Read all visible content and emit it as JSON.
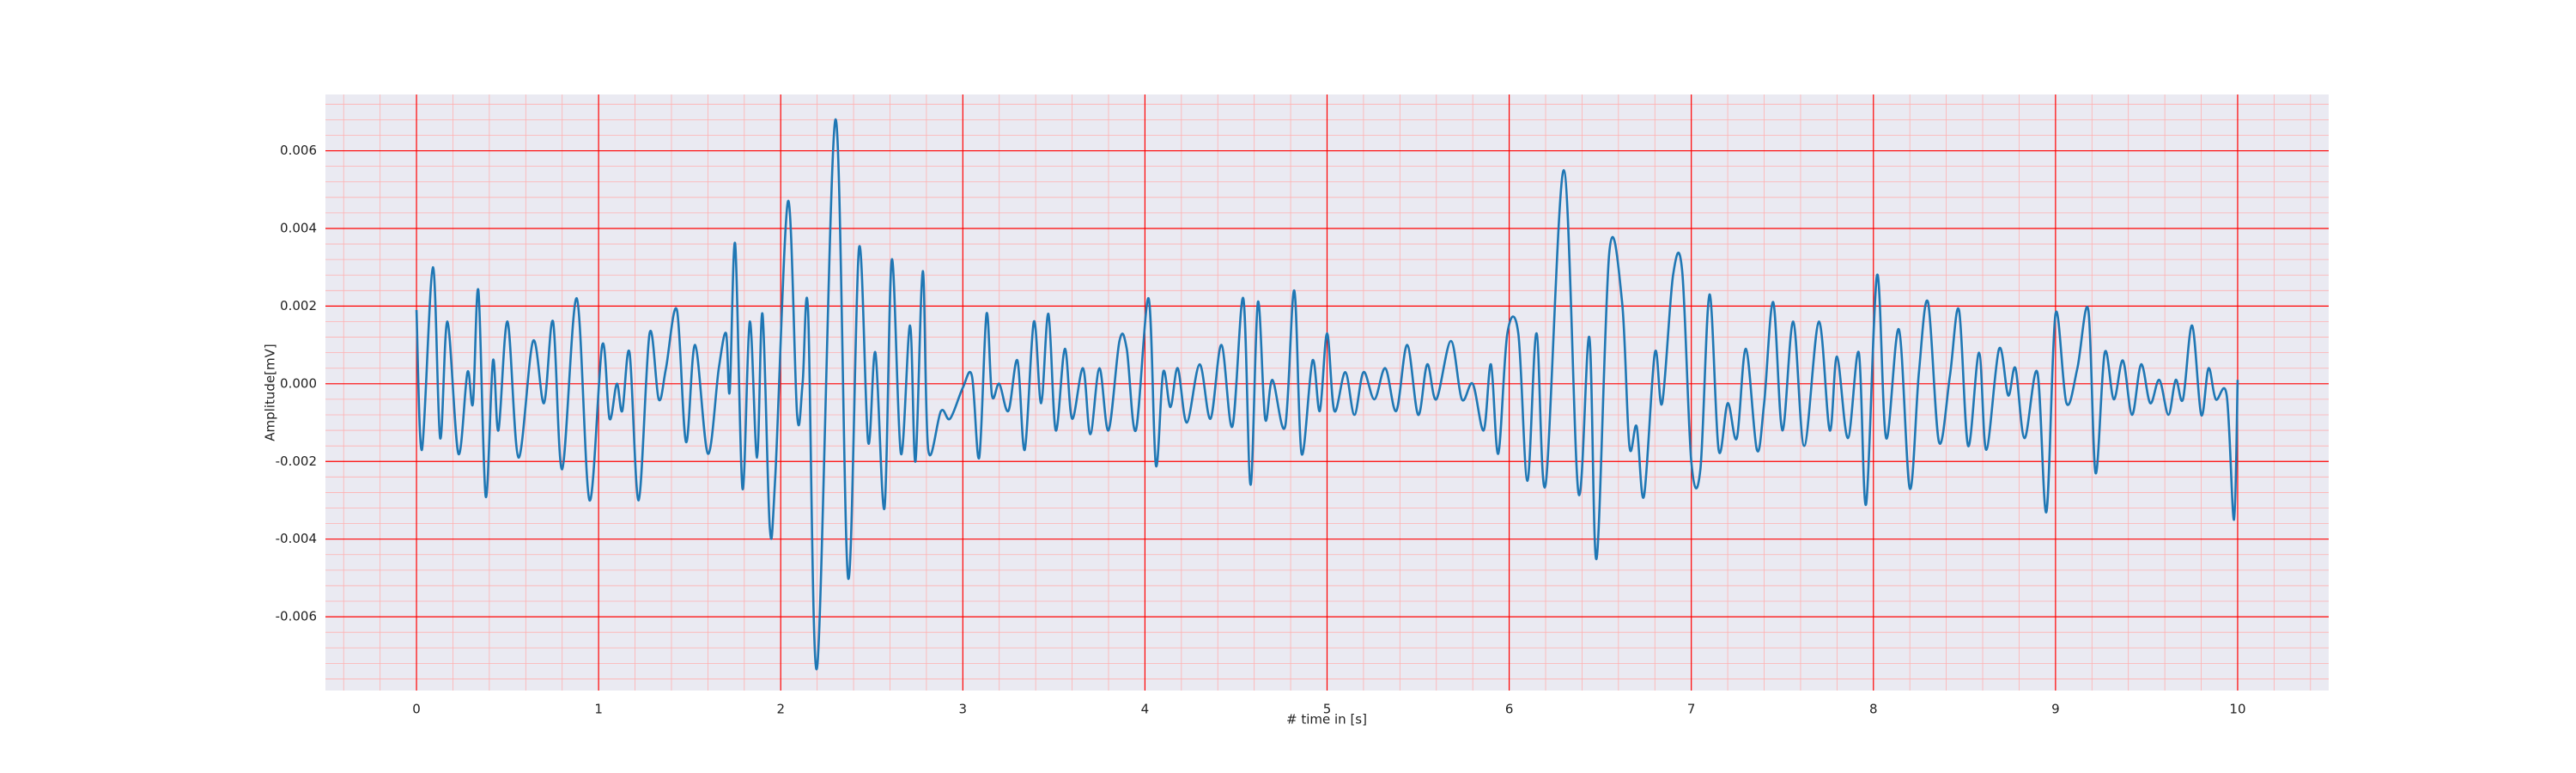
{
  "chart_data": {
    "type": "line",
    "xlabel": "# time in [s]",
    "ylabel": "Amplitude[mV]",
    "xlim": [
      -0.5,
      10.5
    ],
    "ylim": [
      -0.0079,
      0.00745
    ],
    "xticks": [
      0,
      1,
      2,
      3,
      4,
      5,
      6,
      7,
      8,
      9,
      10
    ],
    "yticks": [
      -0.006,
      -0.004,
      -0.002,
      {
        "value": 0,
        "label": "0.000"
      },
      0.002,
      0.004,
      0.006
    ],
    "xminorticks": [
      -0.4,
      -0.2,
      0.2,
      0.4,
      0.6,
      0.8,
      1.2,
      1.4,
      1.6,
      1.8,
      2.2,
      2.4,
      2.6,
      2.8,
      3.2,
      3.4,
      3.6,
      3.8,
      4.2,
      4.4,
      4.6,
      4.8,
      5.2,
      5.4,
      5.6,
      5.8,
      6.2,
      6.4,
      6.6,
      6.8,
      7.2,
      7.4,
      7.6,
      7.8,
      8.2,
      8.4,
      8.6,
      8.8,
      9.2,
      9.4,
      9.6,
      9.8,
      10.2,
      10.4
    ],
    "yminorticks": [
      -0.0076,
      -0.0072,
      -0.0068,
      -0.0064,
      -0.0056,
      -0.0052,
      -0.0048,
      -0.0044,
      -0.0036,
      -0.0032,
      -0.0028,
      -0.0024,
      -0.0016,
      -0.0012,
      -0.0008,
      -0.0004,
      0.0004,
      0.0008,
      0.0012,
      0.0016,
      0.0024,
      0.0028,
      0.0032,
      0.0036,
      0.0044,
      0.0048,
      0.0052,
      0.0056,
      0.0064,
      0.0068,
      0.0072
    ],
    "grid": true,
    "minor_grid": true,
    "grid_color": "#ff0000",
    "minor_grid_color": "#ffb0b0",
    "background": "#eaeaf2",
    "series": [
      {
        "color": "#1f77b4",
        "x": [
          0,
          0.03,
          0.09,
          0.13,
          0.17,
          0.23,
          0.28,
          0.31,
          0.34,
          0.38,
          0.42,
          0.45,
          0.5,
          0.56,
          0.64,
          0.7,
          0.75,
          0.8,
          0.88,
          0.95,
          1.02,
          1.06,
          1.1,
          1.13,
          1.17,
          1.22,
          1.28,
          1.33,
          1.37,
          1.43,
          1.48,
          1.53,
          1.6,
          1.66,
          1.7,
          1.72,
          1.75,
          1.79,
          1.83,
          1.87,
          1.9,
          1.94,
          1.97,
          2.04,
          2.09,
          2.12,
          2.15,
          2.2,
          2.3,
          2.37,
          2.43,
          2.48,
          2.52,
          2.57,
          2.61,
          2.66,
          2.71,
          2.74,
          2.78,
          2.81,
          2.88,
          2.93,
          3.0,
          3.05,
          3.09,
          3.13,
          3.16,
          3.2,
          3.25,
          3.3,
          3.34,
          3.39,
          3.43,
          3.47,
          3.51,
          3.56,
          3.6,
          3.66,
          3.7,
          3.75,
          3.8,
          3.86,
          3.9,
          3.95,
          4.02,
          4.06,
          4.1,
          4.14,
          4.18,
          4.23,
          4.3,
          4.36,
          4.42,
          4.48,
          4.54,
          4.58,
          4.62,
          4.66,
          4.7,
          4.77,
          4.82,
          4.86,
          4.92,
          4.96,
          5.0,
          5.04,
          5.1,
          5.15,
          5.2,
          5.26,
          5.32,
          5.38,
          5.44,
          5.5,
          5.55,
          5.6,
          5.68,
          5.74,
          5.8,
          5.86,
          5.9,
          5.94,
          5.99,
          6.05,
          6.1,
          6.15,
          6.2,
          6.3,
          6.38,
          6.44,
          6.48,
          6.55,
          6.62,
          6.66,
          6.7,
          6.74,
          6.8,
          6.84,
          6.9,
          6.95,
          7.0,
          7.05,
          7.1,
          7.15,
          7.2,
          7.25,
          7.3,
          7.36,
          7.4,
          7.45,
          7.5,
          7.56,
          7.62,
          7.7,
          7.76,
          7.8,
          7.86,
          7.92,
          7.96,
          8.02,
          8.07,
          8.14,
          8.2,
          8.25,
          8.3,
          8.36,
          8.42,
          8.47,
          8.52,
          8.58,
          8.62,
          8.69,
          8.74,
          8.78,
          8.83,
          8.9,
          8.95,
          9.0,
          9.06,
          9.12,
          9.18,
          9.22,
          9.27,
          9.32,
          9.37,
          9.42,
          9.47,
          9.52,
          9.57,
          9.62,
          9.66,
          9.7,
          9.75,
          9.8,
          9.84,
          9.88,
          9.94,
          9.98,
          10.0
        ],
        "values": [
          0.0019,
          -0.0017,
          0.003,
          -0.0014,
          0.0016,
          -0.0018,
          0.0003,
          -0.0005,
          0.0024,
          -0.0029,
          0.0006,
          -0.0012,
          0.0016,
          -0.0019,
          0.0011,
          -0.0005,
          0.0016,
          -0.0022,
          0.0022,
          -0.003,
          0.001,
          -0.0009,
          0,
          -0.0007,
          0.0008,
          -0.003,
          0.0013,
          -0.0004,
          0.0004,
          0.0019,
          -0.0015,
          0.001,
          -0.0018,
          0.0004,
          0.0013,
          -0.0002,
          0.0036,
          -0.0027,
          0.0016,
          -0.0019,
          0.0018,
          -0.0037,
          -0.0024,
          0.0047,
          -0.0008,
          0,
          0.0019,
          -0.0073,
          0.0068,
          -0.005,
          0.0035,
          -0.0015,
          0.0008,
          -0.0032,
          0.0032,
          -0.0018,
          0.0015,
          -0.002,
          0.0029,
          -0.0017,
          -0.0007,
          -0.0009,
          -0.0001,
          0.0002,
          -0.0019,
          0.0018,
          -0.0003,
          0,
          -0.0007,
          0.0006,
          -0.0017,
          0.0016,
          -0.0005,
          0.0018,
          -0.0012,
          0.0009,
          -0.0009,
          0.0004,
          -0.0013,
          0.0004,
          -0.0012,
          0.0011,
          0.0009,
          -0.0012,
          0.0022,
          -0.0021,
          0.0003,
          -0.0006,
          0.0004,
          -0.001,
          0.0005,
          -0.0009,
          0.001,
          -0.0011,
          0.0022,
          -0.0026,
          0.0021,
          -0.0009,
          0.0001,
          -0.0011,
          0.0024,
          -0.0018,
          0.0006,
          -0.0007,
          0.0013,
          -0.0007,
          0.0003,
          -0.0008,
          0.0003,
          -0.0004,
          0.0004,
          -0.0007,
          0.001,
          -0.0008,
          0.0005,
          -0.0004,
          0.0011,
          -0.0004,
          0,
          -0.0012,
          0.0005,
          -0.0018,
          0.0013,
          0.0013,
          -0.0025,
          0.0013,
          -0.0026,
          0.0055,
          -0.0028,
          0.0012,
          -0.0045,
          0.0034,
          0.0021,
          -0.0016,
          -0.0011,
          -0.0029,
          0.0008,
          -0.0005,
          0.0028,
          0.0029,
          -0.002,
          -0.0022,
          0.0023,
          -0.0017,
          -0.0005,
          -0.0014,
          0.0009,
          -0.0017,
          -0.0005,
          0.0021,
          -0.0012,
          0.0016,
          -0.0016,
          0.0016,
          -0.0012,
          0.0007,
          -0.0014,
          0.0008,
          -0.0031,
          0.0028,
          -0.0014,
          0.0014,
          -0.0027,
          0.0003,
          0.0021,
          -0.0015,
          0.0002,
          0.0019,
          -0.0016,
          0.0008,
          -0.0017,
          0.0009,
          -0.0003,
          0.0004,
          -0.0014,
          0.0003,
          -0.0033,
          0.0018,
          -0.0005,
          0.0004,
          0.0019,
          -0.0023,
          0.0008,
          -0.0004,
          0.0006,
          -0.0008,
          0.0005,
          -0.0005,
          0.0001,
          -0.0008,
          0.0001,
          -0.0004,
          0.0015,
          -0.0008,
          0.0004,
          -0.0004,
          -0.0003,
          -0.0035,
          0.0001
        ]
      }
    ]
  }
}
